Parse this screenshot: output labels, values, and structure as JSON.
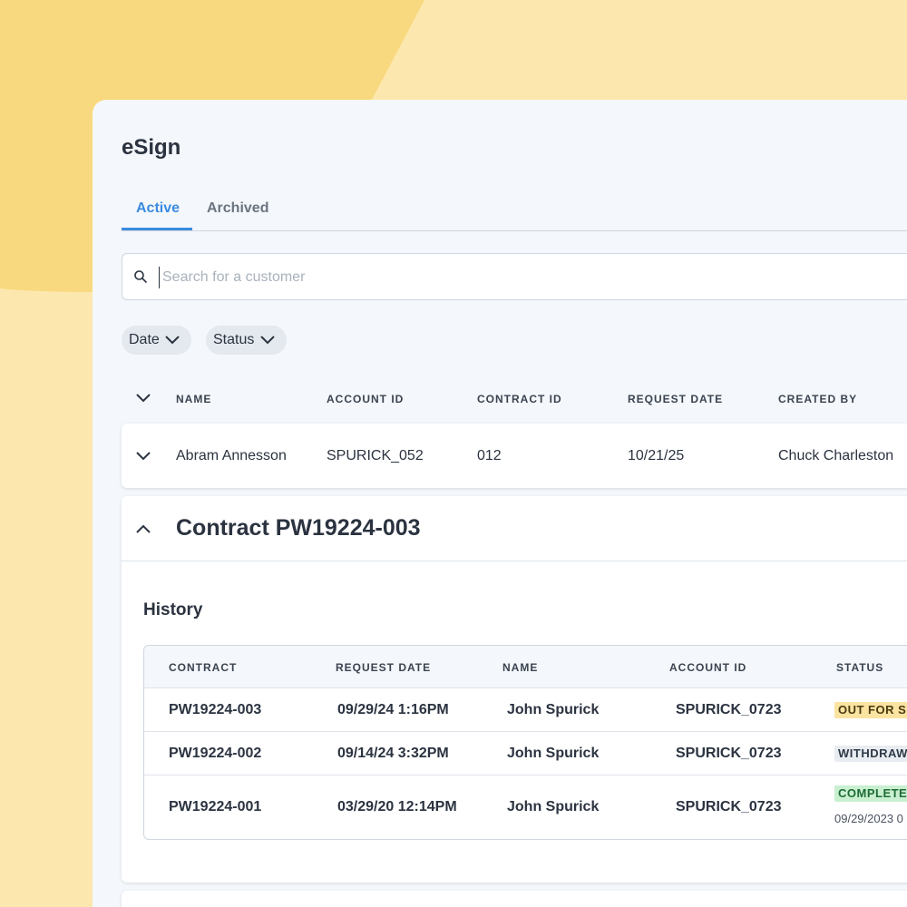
{
  "app": {
    "title": "eSign"
  },
  "tabs": [
    {
      "label": "Active",
      "active": true
    },
    {
      "label": "Archived",
      "active": false
    }
  ],
  "search": {
    "placeholder": "Search for a customer",
    "value": ""
  },
  "filters": [
    {
      "label": "Date",
      "icon": "chevron-down-icon"
    },
    {
      "label": "Status",
      "icon": "chevron-down-icon"
    }
  ],
  "table": {
    "columns": [
      "NAME",
      "ACCOUNT ID",
      "CONTRACT ID",
      "REQUEST DATE",
      "CREATED BY"
    ],
    "rows": [
      {
        "name": "Abram Annesson",
        "account_id": "SPURICK_052",
        "contract_id": "012",
        "request_date": "10/21/25",
        "created_by": "Chuck Charleston"
      }
    ]
  },
  "expanded": {
    "title": "Contract PW19224-003",
    "history": {
      "title": "History",
      "columns": [
        "CONTRACT",
        "REQUEST DATE",
        "NAME",
        "ACCOUNT ID",
        "STATUS"
      ],
      "rows": [
        {
          "contract": "PW19224-003",
          "request_date": "09/29/24 1:16PM",
          "name": "John Spurick",
          "account_id": "SPURICK_0723",
          "status": "OUT FOR SIGNATURE",
          "status_color": "#fbe3a1"
        },
        {
          "contract": "PW19224-002",
          "request_date": "09/14/24 3:32PM",
          "name": "John Spurick",
          "account_id": "SPURICK_0723",
          "status": "WITHDRAWN",
          "status_color": "#e9edf2"
        },
        {
          "contract": "PW19224-001",
          "request_date": "03/29/20 12:14PM",
          "name": "John Spurick",
          "account_id": "SPURICK_0723",
          "status": "COMPLETE",
          "status_color": "#c8f0d0",
          "status_date": "09/29/2023 0"
        }
      ]
    }
  },
  "colors": {
    "accent": "#3b8be0",
    "background": "#fce8ae",
    "panel": "#f4f7fb"
  }
}
